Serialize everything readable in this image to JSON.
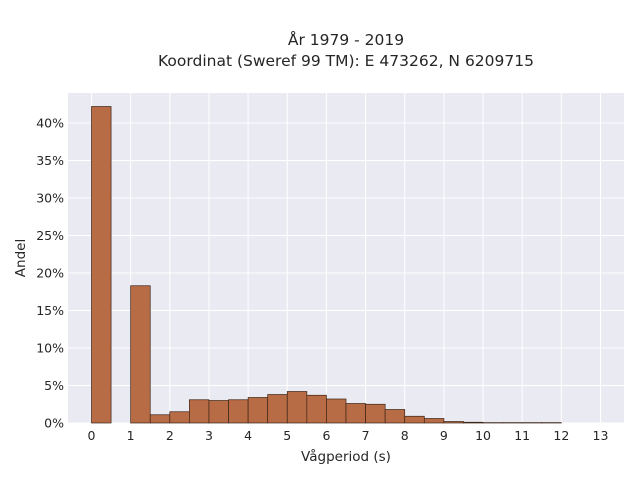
{
  "chart_data": {
    "type": "bar",
    "title": [
      "År 1979 - 2019",
      "Koordinat (Sweref 99 TM): E 473262, N 6209715"
    ],
    "xlabel": "Vågperiod (s)",
    "ylabel": "Andel",
    "xlim": [
      -0.6,
      13.6
    ],
    "ylim": [
      0,
      44
    ],
    "xticks": [
      0,
      1,
      2,
      3,
      4,
      5,
      6,
      7,
      8,
      9,
      10,
      11,
      12,
      13
    ],
    "yticks": [
      0,
      5,
      10,
      15,
      20,
      25,
      30,
      35,
      40
    ],
    "ytick_labels": [
      "0%",
      "5%",
      "10%",
      "15%",
      "20%",
      "25%",
      "30%",
      "35%",
      "40%"
    ],
    "bin_width": 0.5,
    "bin_starts": [
      0,
      1,
      1.5,
      2,
      2.5,
      3,
      3.5,
      4,
      4.5,
      5,
      5.5,
      6,
      6.5,
      7,
      7.5,
      8,
      8.5,
      9,
      9.5,
      10,
      10.5,
      11,
      11.5
    ],
    "values": [
      42.2,
      18.3,
      1.1,
      1.5,
      3.1,
      3.0,
      3.1,
      3.4,
      3.8,
      4.2,
      3.7,
      3.2,
      2.6,
      2.5,
      1.8,
      0.9,
      0.6,
      0.2,
      0.1,
      0.05,
      0.05,
      0.05,
      0.05
    ],
    "grid": true,
    "legend": "none",
    "colors": {
      "bar": "#b86c45",
      "edge": "#3d2417",
      "plot_bg": "#eaeaf2",
      "grid": "#ffffff"
    }
  }
}
